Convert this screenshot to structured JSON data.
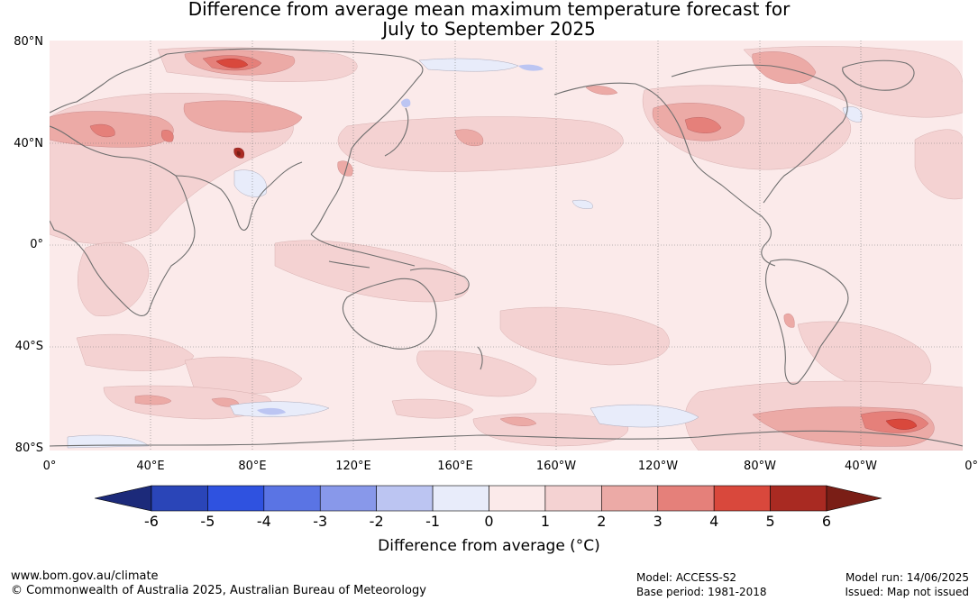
{
  "title": {
    "line1": "Difference from average mean maximum temperature forecast for",
    "line2": "July to September 2025"
  },
  "map": {
    "lat_labels": [
      "80°N",
      "40°N",
      "0°",
      "40°S",
      "80°S"
    ],
    "lon_labels": [
      "0°",
      "40°E",
      "80°E",
      "120°E",
      "160°E",
      "160°W",
      "120°W",
      "80°W",
      "40°W",
      "0°"
    ],
    "background_color": "#fbeaea",
    "coastline_color": "#6e6e6e"
  },
  "colorbar": {
    "title": "Difference from average (°C)",
    "ticks": [
      "-6",
      "-5",
      "-4",
      "-3",
      "-2",
      "-1",
      "0",
      "1",
      "2",
      "3",
      "4",
      "5",
      "6"
    ],
    "colors": [
      "#1c2a7a",
      "#2a45b8",
      "#2f52e0",
      "#5a74e4",
      "#8898ea",
      "#bcc5f2",
      "#e8ecfa",
      "#fbeaea",
      "#f4d2d2",
      "#ecaaa6",
      "#e5807a",
      "#d9483c",
      "#a92a22",
      "#7a1e16"
    ]
  },
  "footer": {
    "url": "www.bom.gov.au/climate",
    "copyright": "© Commonwealth of Australia 2025, Australian Bureau of Meteorology",
    "model": "Model: ACCESS-S2",
    "base_period": "Base period: 1981-2018",
    "model_run": "Model run: 14/06/2025",
    "issued": "Issued: Map not issued"
  }
}
